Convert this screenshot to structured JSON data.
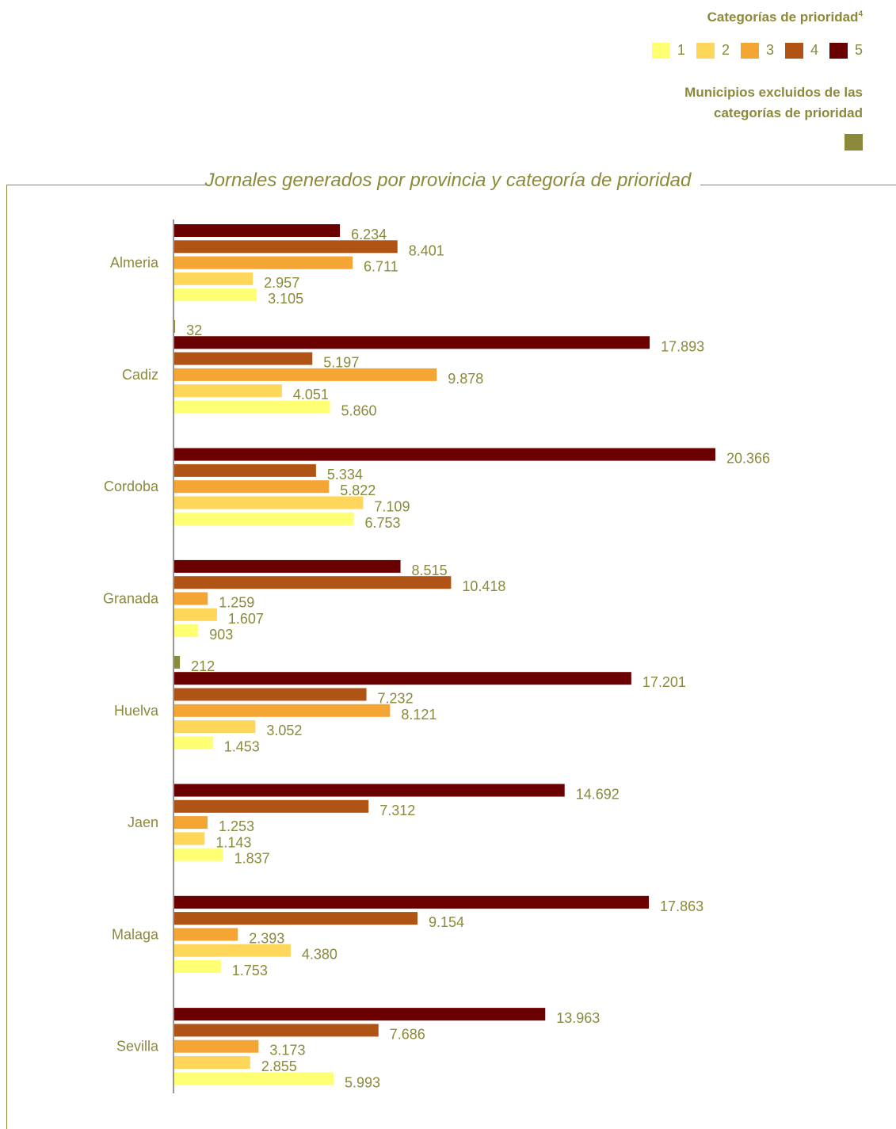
{
  "legend": {
    "title": "Categorías de prioridad",
    "title_sup": "4",
    "items": [
      {
        "label": "1",
        "color": "#ffff73"
      },
      {
        "label": "2",
        "color": "#fdd65a"
      },
      {
        "label": "3",
        "color": "#f4a534"
      },
      {
        "label": "4",
        "color": "#b05415"
      },
      {
        "label": "5",
        "color": "#6b0000"
      }
    ],
    "excluded_title": "Municipios excluidos de las categorías de prioridad",
    "excluded_color": "#8b8a3a"
  },
  "chart_data": {
    "type": "bar",
    "orientation": "horizontal",
    "title": "Jornales generados por provincia y categoría de prioridad",
    "categories": [
      "Almeria",
      "Cadiz",
      "Cordoba",
      "Granada",
      "Huelva",
      "Jaen",
      "Malaga",
      "Sevilla"
    ],
    "series": [
      {
        "name": "Municipios excluidos de las categorías de prioridad",
        "color": "#8b8a3a",
        "values": [
          null,
          32,
          null,
          null,
          212,
          null,
          null,
          null
        ],
        "labels": [
          null,
          "32",
          null,
          null,
          "212",
          null,
          null,
          null
        ]
      },
      {
        "name": "5",
        "color": "#6b0000",
        "values": [
          6234,
          17893,
          20366,
          8515,
          17201,
          14692,
          17863,
          13963
        ],
        "labels": [
          "6.234",
          "17.893",
          "20.366",
          "8.515",
          "17.201",
          "14.692",
          "17.863",
          "13.963"
        ]
      },
      {
        "name": "4",
        "color": "#b05415",
        "values": [
          8401,
          5197,
          5334,
          10418,
          7232,
          7312,
          9154,
          7686
        ],
        "labels": [
          "8.401",
          "5.197",
          "5.334",
          "10.418",
          "7.232",
          "7.312",
          "9.154",
          "7.686"
        ]
      },
      {
        "name": "3",
        "color": "#f4a534",
        "values": [
          6711,
          9878,
          5822,
          1259,
          8121,
          1253,
          2393,
          3173
        ],
        "labels": [
          "6.711",
          "9.878",
          "5.822",
          "1.259",
          "8.121",
          "1.253",
          "2.393",
          "3.173"
        ]
      },
      {
        "name": "2",
        "color": "#fdd65a",
        "values": [
          2957,
          4051,
          7109,
          1607,
          3052,
          1143,
          4380,
          2855
        ],
        "labels": [
          "2.957",
          "4.051",
          "7.109",
          "1.607",
          "3.052",
          "1.143",
          "4.380",
          "2.855"
        ]
      },
      {
        "name": "1",
        "color": "#ffff73",
        "values": [
          3105,
          5860,
          6753,
          903,
          1453,
          1837,
          1753,
          5993
        ],
        "labels": [
          "3.105",
          "5.860",
          "6.753",
          "903",
          "1.453",
          "1.837",
          "1.753",
          "5.993"
        ]
      }
    ],
    "xlim": [
      0,
      20366
    ],
    "grid": false
  }
}
